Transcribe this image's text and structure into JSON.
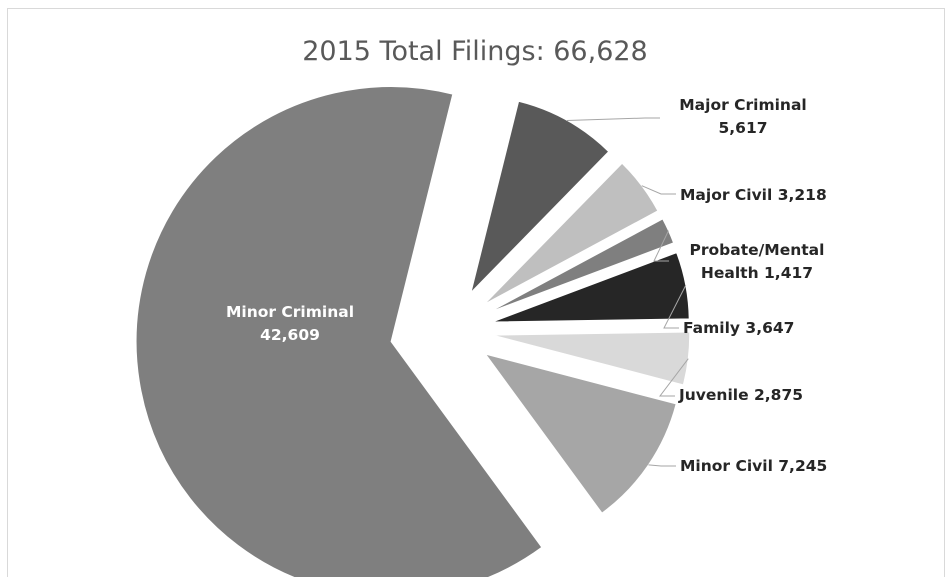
{
  "chart_data": {
    "type": "pie",
    "title": "2015 Total Filings: 66,628",
    "exploded": true,
    "slices": [
      {
        "label": "Minor Criminal",
        "value": 42609,
        "display": "42,609",
        "color": "#7f7f7f",
        "label_lines": [
          "Minor Criminal",
          "42,609"
        ]
      },
      {
        "label": "Major Criminal",
        "value": 5617,
        "display": "5,617",
        "color": "#595959",
        "label_lines": [
          "Major Criminal",
          "5,617"
        ]
      },
      {
        "label": "Major Civil",
        "value": 3218,
        "display": "3,218",
        "color": "#bfbfbf",
        "label_lines": [
          "Major Civil 3,218"
        ]
      },
      {
        "label": "Probate/Mental Health",
        "value": 1417,
        "display": "1,417",
        "color": "#7f7f7f",
        "label_lines": [
          "Probate/Mental",
          "Health 1,417"
        ]
      },
      {
        "label": "Family",
        "value": 3647,
        "display": "3,647",
        "color": "#262626",
        "label_lines": [
          "Family 3,647"
        ]
      },
      {
        "label": "Juvenile",
        "value": 2875,
        "display": "2,875",
        "color": "#d9d9d9",
        "label_lines": [
          "Juvenile 2,875"
        ]
      },
      {
        "label": "Minor Civil",
        "value": 7245,
        "display": "7,245",
        "color": "#a6a6a6",
        "label_lines": [
          "Minor Civil 7,245"
        ]
      }
    ]
  }
}
